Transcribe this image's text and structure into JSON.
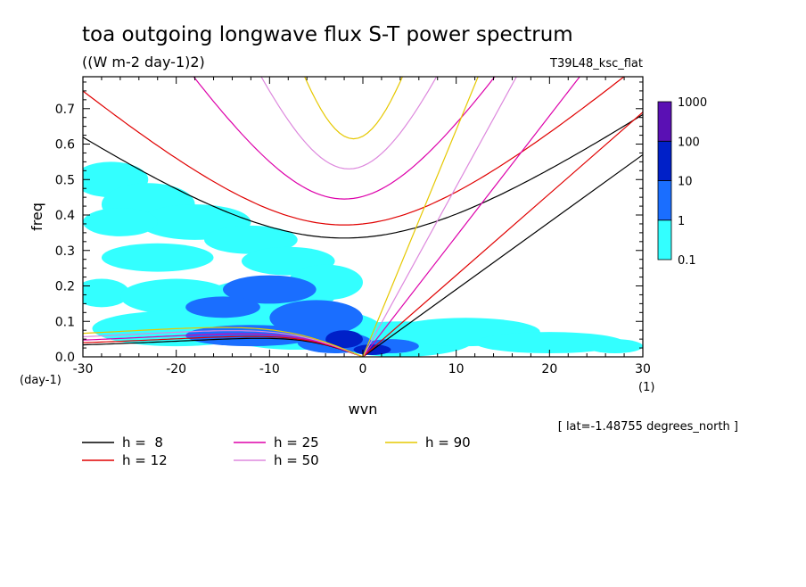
{
  "chart_data": {
    "type": "heatmap",
    "title": "toa outgoing longwave flux S-T power spectrum",
    "subtitle": "((W m-2 day-1)2)",
    "run_label": "T39L48_ksc_flat",
    "xlabel": "wvn",
    "ylabel": "freq",
    "x_unit": "(1)",
    "y_unit": "(day-1)",
    "xlim": [
      -30,
      30
    ],
    "ylim": [
      0.0,
      0.79
    ],
    "x_ticks": [
      "-30",
      "-20",
      "-10",
      "0",
      "10",
      "20",
      "30"
    ],
    "x_tick_values": [
      -30,
      -20,
      -10,
      0,
      10,
      20,
      30
    ],
    "y_ticks": [
      "0.0",
      "0.1",
      "0.2",
      "0.3",
      "0.4",
      "0.5",
      "0.6",
      "0.7"
    ],
    "y_tick_values": [
      0,
      0.1,
      0.2,
      0.3,
      0.4,
      0.5,
      0.6,
      0.7
    ],
    "annotation": "[ lat=-1.48755 degrees_north ]",
    "colorbar": {
      "labels": [
        "1000",
        "100",
        "10",
        "1",
        "0.1"
      ],
      "levels": [
        0.1,
        1,
        10,
        100,
        1000
      ],
      "colors": [
        "#33ffff",
        "#1a6eff",
        "#0020c8",
        "#5a10b4"
      ]
    },
    "contour_regions": [
      {
        "level": 0.1,
        "color": "#33ffff",
        "shapes": [
          {
            "k": -27,
            "f": 0.5,
            "rk": 4,
            "rf": 0.05
          },
          {
            "k": -23,
            "f": 0.43,
            "rk": 5,
            "rf": 0.06
          },
          {
            "k": -18,
            "f": 0.38,
            "rk": 6,
            "rf": 0.05
          },
          {
            "k": -26,
            "f": 0.38,
            "rk": 4,
            "rf": 0.04
          },
          {
            "k": -12,
            "f": 0.33,
            "rk": 5,
            "rf": 0.04
          },
          {
            "k": -22,
            "f": 0.28,
            "rk": 6,
            "rf": 0.04
          },
          {
            "k": -8,
            "f": 0.27,
            "rk": 5,
            "rf": 0.04
          },
          {
            "k": -28,
            "f": 0.18,
            "rk": 3,
            "rf": 0.04
          },
          {
            "k": -20,
            "f": 0.17,
            "rk": 6,
            "rf": 0.05
          },
          {
            "k": -10,
            "f": 0.17,
            "rk": 7,
            "rf": 0.05
          },
          {
            "k": -4,
            "f": 0.21,
            "rk": 4,
            "rf": 0.05
          },
          {
            "k": -20,
            "f": 0.08,
            "rk": 9,
            "rf": 0.05
          },
          {
            "k": -7,
            "f": 0.08,
            "rk": 9,
            "rf": 0.06
          },
          {
            "k": 4,
            "f": 0.05,
            "rk": 8,
            "rf": 0.05
          },
          {
            "k": 11,
            "f": 0.07,
            "rk": 8,
            "rf": 0.04
          },
          {
            "k": 20,
            "f": 0.04,
            "rk": 8,
            "rf": 0.03
          },
          {
            "k": 27,
            "f": 0.03,
            "rk": 3,
            "rf": 0.02
          }
        ]
      },
      {
        "level": 1,
        "color": "#1a6eff",
        "shapes": [
          {
            "k": -10,
            "f": 0.19,
            "rk": 5,
            "rf": 0.04
          },
          {
            "k": -15,
            "f": 0.14,
            "rk": 4,
            "rf": 0.03
          },
          {
            "k": -5,
            "f": 0.11,
            "rk": 5,
            "rf": 0.05
          },
          {
            "k": -12,
            "f": 0.06,
            "rk": 7,
            "rf": 0.03
          },
          {
            "k": -3,
            "f": 0.04,
            "rk": 4,
            "rf": 0.03
          },
          {
            "k": 3,
            "f": 0.03,
            "rk": 3,
            "rf": 0.02
          }
        ]
      },
      {
        "level": 10,
        "color": "#0020c8",
        "shapes": [
          {
            "k": -2,
            "f": 0.05,
            "rk": 2,
            "rf": 0.025
          },
          {
            "k": 1,
            "f": 0.02,
            "rk": 2,
            "rf": 0.015
          }
        ]
      }
    ],
    "legend": [
      {
        "label": "h =  8",
        "color": "#000000"
      },
      {
        "label": "h = 12",
        "color": "#e00000"
      },
      {
        "label": "h = 25",
        "color": "#dd00aa"
      },
      {
        "label": "h = 50",
        "color": "#dd88dd"
      },
      {
        "label": "h = 90",
        "color": "#e6c800"
      }
    ],
    "series": [
      {
        "name": "h =  8",
        "color": "#000000",
        "kelvin_slope": 0.019,
        "ig_minimum": 0.335,
        "ig_center": -2,
        "ig_scale": 18,
        "rossby_amplitude": 0.058,
        "rossby_scale": 11
      },
      {
        "name": "h = 12",
        "color": "#e00000",
        "kelvin_slope": 0.023,
        "ig_minimum": 0.372,
        "ig_center": -2,
        "ig_scale": 16,
        "rossby_amplitude": 0.064,
        "rossby_scale": 12
      },
      {
        "name": "h = 25",
        "color": "#dd00aa",
        "kelvin_slope": 0.034,
        "ig_minimum": 0.445,
        "ig_center": -2,
        "ig_scale": 11,
        "rossby_amplitude": 0.072,
        "rossby_scale": 13
      },
      {
        "name": "h = 50",
        "color": "#dd88dd",
        "kelvin_slope": 0.048,
        "ig_minimum": 0.53,
        "ig_center": -1.5,
        "ig_scale": 8.5,
        "rossby_amplitude": 0.082,
        "rossby_scale": 14
      },
      {
        "name": "h = 90",
        "color": "#e6c800",
        "kelvin_slope": 0.064,
        "ig_minimum": 0.615,
        "ig_center": -1,
        "ig_scale": 6.5,
        "rossby_amplitude": 0.092,
        "rossby_scale": 15
      }
    ]
  }
}
